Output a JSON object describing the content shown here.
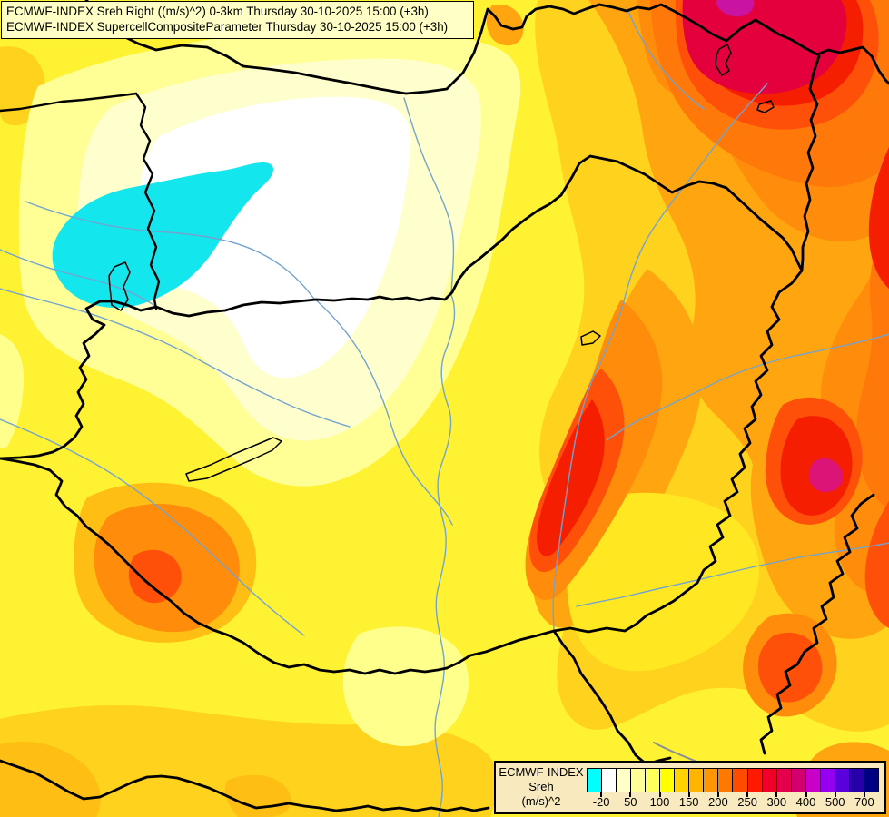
{
  "header": {
    "line1": "ECMWF-INDEX Sreh Right ((m/s)^2) 0-3km Thursday 30-10-2025 15:00 (+3h)",
    "line2": "ECMWF-INDEX SupercellCompositeParameter Thursday 30-10-2025 15:00 (+3h)"
  },
  "legend": {
    "product": "ECMWF-INDEX",
    "parameter": "Sreh",
    "unit": "(m/s)^2",
    "tick_labels": [
      "-20",
      "50",
      "100",
      "150",
      "200",
      "250",
      "300",
      "400",
      "500",
      "700"
    ],
    "swatch_colors": [
      "#00FFFF",
      "#FFFFFF",
      "#FFFFC8",
      "#FFFF96",
      "#FFFF5A",
      "#FFFF00",
      "#FFD200",
      "#FFB400",
      "#FF9600",
      "#FF7800",
      "#FF4B00",
      "#FF1900",
      "#F00028",
      "#E4004B",
      "#D2006E",
      "#C800C8",
      "#9600F0",
      "#5A00DC",
      "#2800AA",
      "#000082"
    ]
  },
  "map": {
    "border_color": "#000000",
    "river_color": "#73A3CF",
    "secondary_river_color": "#8A8F96",
    "lake_outline_color": "#000000",
    "palette": {
      "yellow_base": "#FFF233",
      "pale_yellow": "#FFFF96",
      "pale_yellow_light": "#FFFF8C",
      "cream": "#FFFFCD",
      "white": "#FFFFFF",
      "cyan": "#14E6EE",
      "gold": "#FFD21E",
      "amber": "#FFBE14",
      "se_yellow": "#FFE822",
      "light_orange": "#FFA50F",
      "orange": "#FF8C0A",
      "deep_orange": "#FF780A",
      "orange_red": "#FF500A",
      "red": "#F51E00",
      "crimson": "#E4003C",
      "magenta": "#C814A0",
      "pink_magenta": "#DC1478"
    }
  }
}
